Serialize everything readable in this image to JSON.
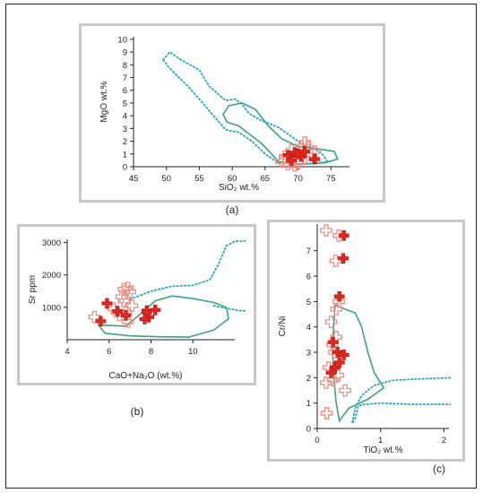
{
  "chart_data": [
    {
      "type": "scatter",
      "panel_label": "(a)",
      "xlabel": "SiO₂ wt.%",
      "ylabel": "MgO wt.%",
      "xlim": [
        45,
        77
      ],
      "ylim": [
        0,
        10.2
      ],
      "x_ticks": [
        45,
        50,
        55,
        60,
        65,
        70,
        75
      ],
      "y_ticks": [
        0,
        1,
        2,
        3,
        4,
        5,
        6,
        7,
        8,
        9,
        10
      ],
      "colors": {
        "solid": "#e0261f",
        "hollow": "#f08c80",
        "field_green": "#3aa57a",
        "field_dotted": "#1aa6c4"
      },
      "series": [
        {
          "style": "solid",
          "points": [
            [
              68.5,
              0.9
            ],
            [
              69.5,
              1.1
            ],
            [
              70.5,
              0.8
            ],
            [
              71.0,
              1.2
            ],
            [
              69.0,
              0.5
            ],
            [
              72.5,
              0.6
            ],
            [
              70.0,
              1.0
            ]
          ]
        },
        {
          "style": "hollow",
          "points": [
            [
              67.5,
              0.4
            ],
            [
              68.0,
              0.8
            ],
            [
              69.0,
              1.3
            ],
            [
              70.0,
              0.3
            ],
            [
              70.5,
              1.6
            ],
            [
              71.0,
              1.9
            ],
            [
              71.5,
              1.5
            ],
            [
              72.0,
              0.9
            ],
            [
              69.5,
              0.1
            ],
            [
              68.5,
              0.2
            ],
            [
              72.5,
              1.2
            ],
            [
              71.0,
              0.7
            ]
          ]
        }
      ],
      "fields": [
        {
          "style": "green",
          "points": [
            [
              61.0,
              3.2
            ],
            [
              59.2,
              3.5
            ],
            [
              58.6,
              4.1
            ],
            [
              59.5,
              4.8
            ],
            [
              61.5,
              5.0
            ],
            [
              63.5,
              4.5
            ],
            [
              65.5,
              3.2
            ],
            [
              67.5,
              2.2
            ],
            [
              70.0,
              1.6
            ],
            [
              73.0,
              1.4
            ],
            [
              75.5,
              1.2
            ],
            [
              76.0,
              0.6
            ],
            [
              74.0,
              0.3
            ],
            [
              70.0,
              0.2
            ],
            [
              67.0,
              0.4
            ],
            [
              66.0,
              1.0
            ],
            [
              64.5,
              1.8
            ],
            [
              63.0,
              2.4
            ],
            [
              61.0,
              3.2
            ]
          ]
        },
        {
          "style": "dotted",
          "points": [
            [
              49.5,
              8.4
            ],
            [
              50.5,
              9.0
            ],
            [
              52.5,
              8.3
            ],
            [
              55.0,
              7.6
            ],
            [
              56.5,
              6.3
            ],
            [
              59.0,
              5.2
            ],
            [
              60.5,
              5.3
            ],
            [
              61.5,
              4.9
            ],
            [
              62.5,
              4.2
            ],
            [
              64.5,
              3.6
            ],
            [
              67.0,
              3.1
            ],
            [
              70.0,
              2.0
            ],
            [
              73.5,
              1.1
            ],
            [
              74.5,
              0.4
            ],
            [
              71.0,
              0.2
            ],
            [
              67.0,
              0.3
            ],
            [
              65.0,
              1.0
            ],
            [
              63.0,
              2.0
            ],
            [
              61.0,
              2.7
            ],
            [
              59.0,
              2.9
            ],
            [
              57.5,
              3.8
            ],
            [
              55.5,
              5.0
            ],
            [
              53.5,
              6.2
            ],
            [
              51.5,
              7.2
            ],
            [
              50.2,
              7.9
            ],
            [
              49.5,
              8.4
            ]
          ]
        }
      ]
    },
    {
      "type": "scatter",
      "panel_label": "(b)",
      "xlabel": "CaO+Na₂O (wt.%)",
      "ylabel": "Sr ppm",
      "xlim": [
        4,
        12
      ],
      "ylim": [
        0,
        3100
      ],
      "x_ticks": [
        4,
        6,
        8,
        10
      ],
      "y_ticks": [
        1000,
        2000,
        3000
      ],
      "series": [
        {
          "style": "solid",
          "points": [
            [
              5.6,
              570
            ],
            [
              5.9,
              1120
            ],
            [
              6.4,
              880
            ],
            [
              7.8,
              900
            ],
            [
              8.2,
              920
            ],
            [
              7.9,
              700
            ],
            [
              7.8,
              860
            ],
            [
              6.8,
              750
            ],
            [
              7.7,
              640
            ]
          ]
        },
        {
          "style": "hollow",
          "points": [
            [
              5.3,
              700
            ],
            [
              6.2,
              960
            ],
            [
              6.6,
              1320
            ],
            [
              6.7,
              1560
            ],
            [
              6.9,
              1600
            ],
            [
              7.0,
              1480
            ],
            [
              7.1,
              1050
            ],
            [
              6.8,
              860
            ],
            [
              6.9,
              560
            ],
            [
              6.5,
              760
            ],
            [
              6.7,
              1200
            ]
          ]
        }
      ],
      "fields": [
        {
          "style": "green",
          "points": [
            [
              5.5,
              450
            ],
            [
              6.8,
              420
            ],
            [
              7.5,
              800
            ],
            [
              8.2,
              1200
            ],
            [
              9.0,
              1350
            ],
            [
              10.0,
              1270
            ],
            [
              11.0,
              1150
            ],
            [
              11.6,
              1000
            ],
            [
              11.7,
              650
            ],
            [
              11.0,
              300
            ],
            [
              9.8,
              80
            ],
            [
              8.4,
              90
            ],
            [
              7.0,
              120
            ],
            [
              5.8,
              200
            ],
            [
              5.5,
              450
            ]
          ]
        },
        {
          "style": "dotted",
          "points": [
            [
              7.0,
              1250
            ],
            [
              8.0,
              1500
            ],
            [
              9.0,
              1650
            ],
            [
              10.0,
              1680
            ],
            [
              10.8,
              1850
            ],
            [
              11.2,
              2300
            ],
            [
              11.6,
              2900
            ],
            [
              12.0,
              3040
            ],
            [
              13.0,
              3060
            ]
          ],
          "open": true
        },
        {
          "style": "dotted",
          "points": [
            [
              11.0,
              1050
            ],
            [
              12.2,
              900
            ],
            [
              13.0,
              880
            ]
          ],
          "open": true
        }
      ]
    },
    {
      "type": "scatter",
      "panel_label": "(c)",
      "xlabel": "TiO₂ wt.%",
      "ylabel": "Cr/Ni",
      "xlim": [
        0,
        2.08
      ],
      "ylim": [
        0,
        8.05
      ],
      "x_ticks": [
        0,
        1,
        2
      ],
      "y_ticks": [
        0,
        1,
        2,
        3,
        4,
        5,
        6,
        7
      ],
      "series": [
        {
          "style": "solid",
          "points": [
            [
              0.42,
              7.6
            ],
            [
              0.41,
              6.7
            ],
            [
              0.35,
              5.2
            ],
            [
              0.25,
              3.4
            ],
            [
              0.32,
              3.0
            ],
            [
              0.42,
              2.9
            ],
            [
              0.28,
              2.4
            ],
            [
              0.22,
              2.2
            ],
            [
              0.35,
              2.6
            ]
          ]
        },
        {
          "style": "hollow",
          "points": [
            [
              0.14,
              7.8
            ],
            [
              0.34,
              7.6
            ],
            [
              0.29,
              6.6
            ],
            [
              0.34,
              5.0
            ],
            [
              0.3,
              4.7
            ],
            [
              0.24,
              3.3
            ],
            [
              0.27,
              3.0
            ],
            [
              0.18,
              2.4
            ],
            [
              0.33,
              2.1
            ],
            [
              0.25,
              1.9
            ],
            [
              0.14,
              1.8
            ],
            [
              0.44,
              1.5
            ],
            [
              0.15,
              0.6
            ],
            [
              0.22,
              4.2
            ],
            [
              0.3,
              3.6
            ]
          ]
        }
      ],
      "fields": [
        {
          "style": "green",
          "points": [
            [
              0.28,
              4.85
            ],
            [
              0.6,
              4.55
            ],
            [
              0.7,
              4.0
            ],
            [
              0.8,
              3.0
            ],
            [
              0.9,
              2.2
            ],
            [
              1.05,
              1.6
            ],
            [
              0.8,
              1.15
            ],
            [
              0.5,
              0.8
            ],
            [
              0.35,
              0.3
            ],
            [
              0.3,
              1.0
            ],
            [
              0.26,
              2.0
            ],
            [
              0.24,
              3.2
            ],
            [
              0.28,
              4.85
            ]
          ]
        },
        {
          "style": "dotted",
          "points": [
            [
              2.1,
              2.0
            ],
            [
              1.6,
              1.95
            ],
            [
              1.2,
              1.9
            ],
            [
              0.9,
              1.7
            ],
            [
              0.7,
              1.3
            ],
            [
              0.6,
              0.8
            ],
            [
              0.55,
              0.2
            ],
            [
              0.6,
              0.4
            ],
            [
              0.65,
              0.9
            ],
            [
              0.75,
              0.95
            ],
            [
              1.0,
              1.0
            ],
            [
              1.5,
              0.95
            ],
            [
              2.1,
              0.95
            ]
          ],
          "open": true
        }
      ]
    }
  ]
}
